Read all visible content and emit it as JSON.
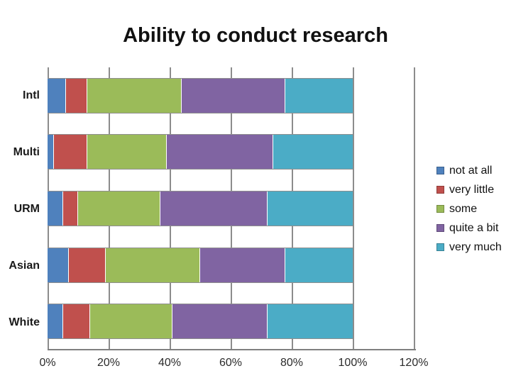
{
  "slide": {
    "title": "Ability to conduct research"
  },
  "chart_data": {
    "type": "bar",
    "variant": "horizontal-stacked-100",
    "title": "Ability to conduct research",
    "categories": [
      "Intl",
      "Multi",
      "URM",
      "Asian",
      "White"
    ],
    "series": [
      {
        "name": "not at all",
        "color": "#4F81BD",
        "values": [
          6,
          2,
          5,
          7,
          5
        ]
      },
      {
        "name": "very little",
        "color": "#C0504D",
        "values": [
          7,
          11,
          5,
          12,
          9
        ]
      },
      {
        "name": "some",
        "color": "#9BBB59",
        "values": [
          31,
          26,
          27,
          31,
          27
        ]
      },
      {
        "name": "quite a bit",
        "color": "#8064A2",
        "values": [
          34,
          35,
          35,
          28,
          31
        ]
      },
      {
        "name": "very much",
        "color": "#4BACC6",
        "values": [
          22,
          26,
          28,
          22,
          28
        ]
      }
    ],
    "x_axis": {
      "min": 0,
      "max": 120,
      "tick_step": 20,
      "unit": "%",
      "tick_labels": [
        "0%",
        "20%",
        "40%",
        "60%",
        "80%",
        "100%",
        "120%"
      ]
    },
    "y_axis": {
      "labels": [
        "Intl",
        "Multi",
        "URM",
        "Asian",
        "White"
      ]
    },
    "legend": {
      "position": "right"
    },
    "grid": true,
    "colors": {
      "gridline": "#8c8c8c",
      "axis_line": "#7f7f7f",
      "title_text": "#111111",
      "label_text": "#1a1a1a",
      "background": "#ffffff"
    }
  }
}
